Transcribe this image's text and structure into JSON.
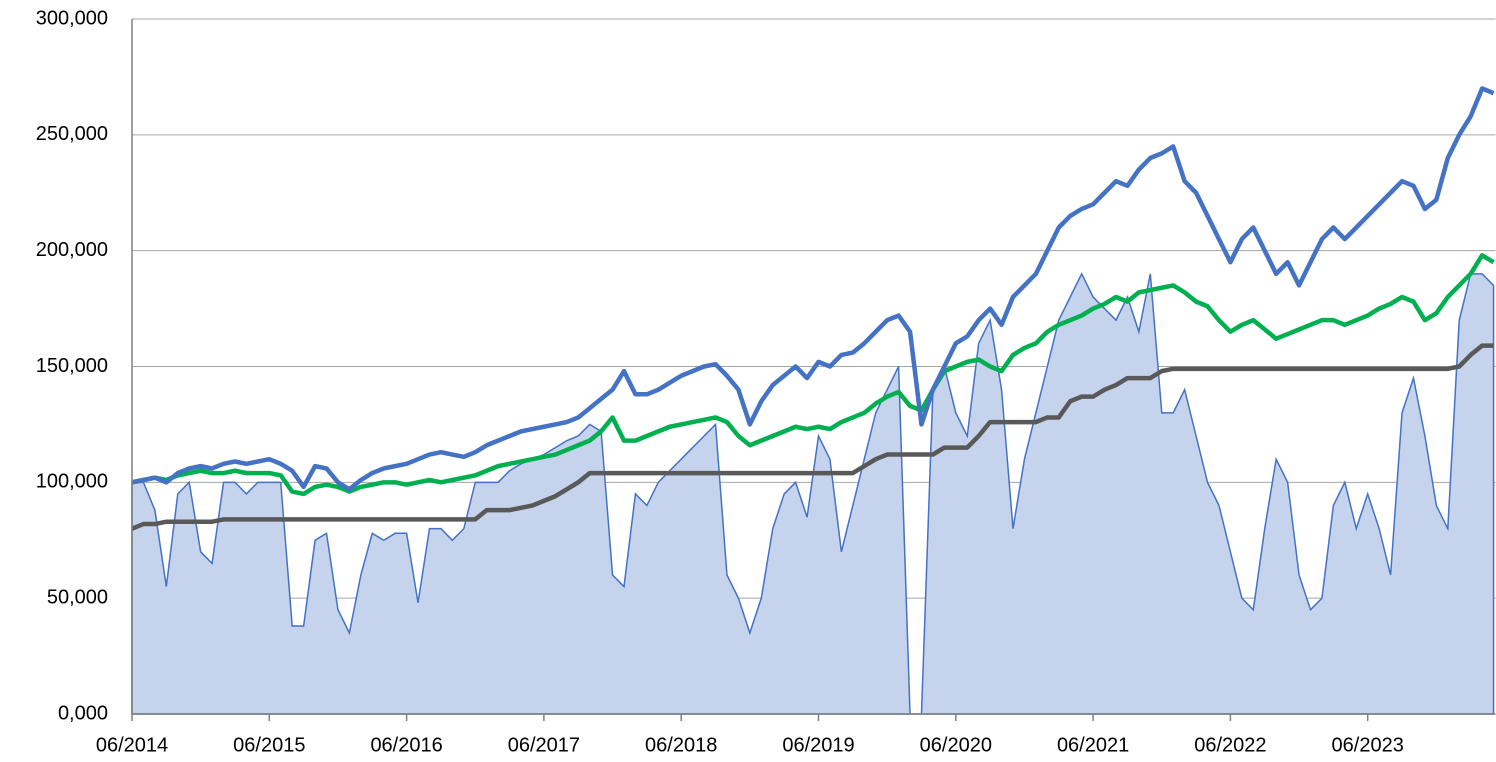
{
  "chart_data": {
    "type": "line",
    "categories": [
      "06/2014",
      null,
      null,
      null,
      null,
      null,
      null,
      null,
      null,
      null,
      null,
      null,
      "06/2015",
      null,
      null,
      null,
      null,
      null,
      null,
      null,
      null,
      null,
      null,
      null,
      "06/2016",
      null,
      null,
      null,
      null,
      null,
      null,
      null,
      null,
      null,
      null,
      null,
      "06/2017",
      null,
      null,
      null,
      null,
      null,
      null,
      null,
      null,
      null,
      null,
      null,
      "06/2018",
      null,
      null,
      null,
      null,
      null,
      null,
      null,
      null,
      null,
      null,
      null,
      "06/2019",
      null,
      null,
      null,
      null,
      null,
      null,
      null,
      null,
      null,
      null,
      null,
      "06/2020",
      null,
      null,
      null,
      null,
      null,
      null,
      null,
      null,
      null,
      null,
      null,
      "06/2021",
      null,
      null,
      null,
      null,
      null,
      null,
      null,
      null,
      null,
      null,
      null,
      "06/2022",
      null,
      null,
      null,
      null,
      null,
      null,
      null,
      null,
      null,
      null,
      null,
      "06/2023",
      null,
      null,
      null,
      null,
      null,
      null,
      null,
      null,
      null,
      null,
      null
    ],
    "ylim": [
      0,
      300000
    ],
    "yticks": [
      {
        "value": 0,
        "label": "0,000"
      },
      {
        "value": 50000,
        "label": "50,000"
      },
      {
        "value": 100000,
        "label": "100,000"
      },
      {
        "value": 150000,
        "label": "150,000"
      },
      {
        "value": 200000,
        "label": "200,000"
      },
      {
        "value": 250000,
        "label": "250,000"
      },
      {
        "value": 300000,
        "label": "300,000"
      }
    ],
    "grid": true,
    "series": [
      {
        "color": "#4472c4",
        "area": true,
        "values": [
          100000,
          100000,
          88000,
          55000,
          95000,
          100000,
          70000,
          65000,
          100000,
          100000,
          95000,
          100000,
          100000,
          100000,
          38000,
          38000,
          75000,
          78000,
          45000,
          35000,
          60000,
          78000,
          75000,
          78000,
          78000,
          48000,
          80000,
          80000,
          75000,
          80000,
          100000,
          100000,
          100000,
          105000,
          108000,
          110000,
          112000,
          115000,
          118000,
          120000,
          125000,
          122000,
          60000,
          55000,
          95000,
          90000,
          100000,
          105000,
          110000,
          115000,
          120000,
          125000,
          60000,
          50000,
          35000,
          50000,
          80000,
          95000,
          100000,
          85000,
          120000,
          110000,
          70000,
          90000,
          110000,
          130000,
          140000,
          150000,
          0,
          0,
          140000,
          150000,
          130000,
          120000,
          160000,
          170000,
          140000,
          80000,
          110000,
          130000,
          150000,
          170000,
          180000,
          190000,
          180000,
          175000,
          170000,
          180000,
          165000,
          190000,
          130000,
          130000,
          140000,
          120000,
          100000,
          90000,
          70000,
          50000,
          45000,
          80000,
          110000,
          100000,
          60000,
          45000,
          50000,
          90000,
          100000,
          80000,
          95000,
          80000,
          60000,
          130000,
          145000,
          120000,
          90000,
          80000,
          170000,
          190000,
          190000,
          185000
        ]
      },
      {
        "color": "#595959",
        "values": [
          80000,
          82000,
          82000,
          83000,
          83000,
          83000,
          83000,
          83000,
          84000,
          84000,
          84000,
          84000,
          84000,
          84000,
          84000,
          84000,
          84000,
          84000,
          84000,
          84000,
          84000,
          84000,
          84000,
          84000,
          84000,
          84000,
          84000,
          84000,
          84000,
          84000,
          84000,
          88000,
          88000,
          88000,
          89000,
          90000,
          92000,
          94000,
          97000,
          100000,
          104000,
          104000,
          104000,
          104000,
          104000,
          104000,
          104000,
          104000,
          104000,
          104000,
          104000,
          104000,
          104000,
          104000,
          104000,
          104000,
          104000,
          104000,
          104000,
          104000,
          104000,
          104000,
          104000,
          104000,
          107000,
          110000,
          112000,
          112000,
          112000,
          112000,
          112000,
          115000,
          115000,
          115000,
          120000,
          126000,
          126000,
          126000,
          126000,
          126000,
          128000,
          128000,
          135000,
          137000,
          137000,
          140000,
          142000,
          145000,
          145000,
          145000,
          148000,
          149000,
          149000,
          149000,
          149000,
          149000,
          149000,
          149000,
          149000,
          149000,
          149000,
          149000,
          149000,
          149000,
          149000,
          149000,
          149000,
          149000,
          149000,
          149000,
          149000,
          149000,
          149000,
          149000,
          149000,
          149000,
          150000,
          155000,
          159000,
          159000
        ]
      },
      {
        "color": "#00b050",
        "values": [
          100000,
          101000,
          102000,
          101000,
          103000,
          104000,
          105000,
          104000,
          104000,
          105000,
          104000,
          104000,
          104000,
          103000,
          96000,
          95000,
          98000,
          99000,
          98000,
          96000,
          98000,
          99000,
          100000,
          100000,
          99000,
          100000,
          101000,
          100000,
          101000,
          102000,
          103000,
          105000,
          107000,
          108000,
          109000,
          110000,
          111000,
          112000,
          114000,
          116000,
          118000,
          122000,
          128000,
          118000,
          118000,
          120000,
          122000,
          124000,
          125000,
          126000,
          127000,
          128000,
          126000,
          120000,
          116000,
          118000,
          120000,
          122000,
          124000,
          123000,
          124000,
          123000,
          126000,
          128000,
          130000,
          134000,
          137000,
          139000,
          133000,
          131000,
          140000,
          148000,
          150000,
          152000,
          153000,
          150000,
          148000,
          155000,
          158000,
          160000,
          165000,
          168000,
          170000,
          172000,
          175000,
          177000,
          180000,
          178000,
          182000,
          183000,
          184000,
          185000,
          182000,
          178000,
          176000,
          170000,
          165000,
          168000,
          170000,
          166000,
          162000,
          164000,
          166000,
          168000,
          170000,
          170000,
          168000,
          170000,
          172000,
          175000,
          177000,
          180000,
          178000,
          170000,
          173000,
          180000,
          185000,
          190000,
          198000,
          195000
        ]
      },
      {
        "color": "#4472c4",
        "values": [
          100000,
          101000,
          102000,
          100000,
          104000,
          106000,
          107000,
          106000,
          108000,
          109000,
          108000,
          109000,
          110000,
          108000,
          105000,
          98000,
          107000,
          106000,
          100000,
          97000,
          101000,
          104000,
          106000,
          107000,
          108000,
          110000,
          112000,
          113000,
          112000,
          111000,
          113000,
          116000,
          118000,
          120000,
          122000,
          123000,
          124000,
          125000,
          126000,
          128000,
          132000,
          136000,
          140000,
          148000,
          138000,
          138000,
          140000,
          143000,
          146000,
          148000,
          150000,
          151000,
          146000,
          140000,
          125000,
          135000,
          142000,
          146000,
          150000,
          145000,
          152000,
          150000,
          155000,
          156000,
          160000,
          165000,
          170000,
          172000,
          165000,
          125000,
          140000,
          150000,
          160000,
          163000,
          170000,
          175000,
          168000,
          180000,
          185000,
          190000,
          200000,
          210000,
          215000,
          218000,
          220000,
          225000,
          230000,
          228000,
          235000,
          240000,
          242000,
          245000,
          230000,
          225000,
          215000,
          205000,
          195000,
          205000,
          210000,
          200000,
          190000,
          195000,
          185000,
          195000,
          205000,
          210000,
          205000,
          210000,
          215000,
          220000,
          225000,
          230000,
          228000,
          218000,
          222000,
          240000,
          250000,
          258000,
          270000,
          268000
        ]
      }
    ]
  }
}
